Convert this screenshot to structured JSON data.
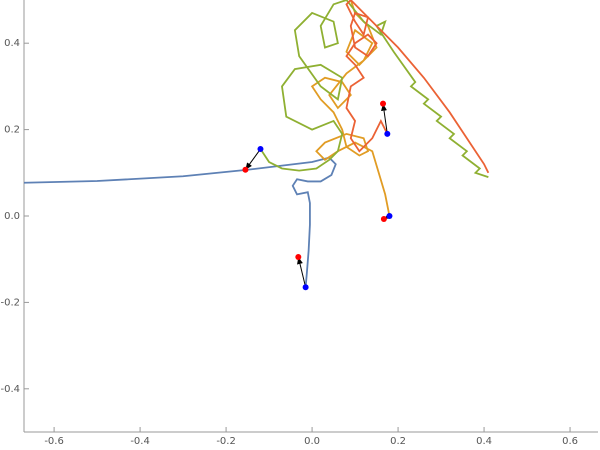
{
  "chart_data": {
    "type": "line",
    "xlim": [
      -0.67,
      0.665
    ],
    "ylim": [
      -0.5,
      0.5
    ],
    "xticks": [
      -0.6,
      -0.4,
      -0.2,
      {
        "value": 0,
        "label": "0.0"
      },
      0.2,
      0.4,
      0.6
    ],
    "yticks": [
      -0.4,
      -0.2,
      {
        "value": 0,
        "label": "0.0"
      },
      0.2,
      0.4
    ],
    "series": [
      {
        "color": "#5e81b5",
        "x": [
          -0.67,
          -0.5,
          -0.3,
          -0.15,
          0.0,
          0.04,
          0.055,
          0.045,
          0.02,
          -0.01,
          -0.035,
          -0.045,
          -0.035,
          -0.01,
          -0.005,
          -0.005,
          -0.008,
          -0.012,
          -0.015
        ],
        "values": [
          0.077,
          0.081,
          0.092,
          0.107,
          0.125,
          0.135,
          0.12,
          0.095,
          0.08,
          0.08,
          0.085,
          0.07,
          0.05,
          0.055,
          0.03,
          -0.02,
          -0.08,
          -0.13,
          -0.165
        ]
      },
      {
        "color": "#e19c24",
        "x": [
          0.18,
          0.17,
          0.155,
          0.14,
          0.1,
          0.06,
          0.03,
          0.01,
          0.03,
          0.08,
          0.12,
          0.13,
          0.11,
          0.08,
          0.07,
          0.05,
          0.02,
          0.0,
          0.03,
          0.07,
          0.09,
          0.06,
          0.04,
          0.08,
          0.12,
          0.14,
          0.1,
          0.08,
          0.11,
          0.15,
          0.13,
          0.1,
          0.09
        ],
        "values": [
          0.0,
          0.05,
          0.1,
          0.15,
          0.17,
          0.15,
          0.13,
          0.15,
          0.17,
          0.19,
          0.18,
          0.15,
          0.14,
          0.16,
          0.2,
          0.24,
          0.27,
          0.3,
          0.32,
          0.31,
          0.28,
          0.25,
          0.28,
          0.33,
          0.36,
          0.4,
          0.43,
          0.38,
          0.35,
          0.39,
          0.44,
          0.47,
          0.5
        ]
      },
      {
        "color": "#8fb032",
        "x": [
          -0.12,
          -0.1,
          -0.07,
          -0.03,
          0.01,
          0.04,
          0.06,
          0.07,
          0.05,
          0.0,
          -0.06,
          -0.07,
          -0.04,
          0.02,
          0.07,
          0.06,
          0.02,
          -0.03,
          -0.04,
          0.0,
          0.05,
          0.06,
          0.03,
          0.02,
          0.05,
          0.08,
          0.12,
          0.16,
          0.17,
          0.15,
          0.19,
          0.24,
          0.23,
          0.27,
          0.26,
          0.3,
          0.29,
          0.33,
          0.32,
          0.36,
          0.35,
          0.39,
          0.38,
          0.41
        ],
        "values": [
          0.155,
          0.125,
          0.11,
          0.105,
          0.11,
          0.13,
          0.15,
          0.19,
          0.22,
          0.2,
          0.23,
          0.3,
          0.34,
          0.35,
          0.32,
          0.27,
          0.3,
          0.37,
          0.43,
          0.47,
          0.45,
          0.4,
          0.39,
          0.44,
          0.49,
          0.5,
          0.45,
          0.42,
          0.45,
          0.44,
          0.38,
          0.31,
          0.3,
          0.27,
          0.26,
          0.23,
          0.22,
          0.19,
          0.18,
          0.15,
          0.14,
          0.11,
          0.1,
          0.09
        ]
      },
      {
        "color": "#eb6235",
        "x": [
          0.175,
          0.16,
          0.14,
          0.11,
          0.09,
          0.1,
          0.08,
          0.09,
          0.12,
          0.1,
          0.08,
          0.1,
          0.13,
          0.15,
          0.13,
          0.1,
          0.09,
          0.1,
          0.13,
          0.12,
          0.1,
          0.08,
          0.09,
          0.12,
          0.2,
          0.26,
          0.32,
          0.36,
          0.4,
          0.41
        ],
        "values": [
          0.19,
          0.22,
          0.18,
          0.15,
          0.18,
          0.22,
          0.25,
          0.3,
          0.32,
          0.35,
          0.37,
          0.4,
          0.42,
          0.4,
          0.37,
          0.39,
          0.44,
          0.47,
          0.46,
          0.42,
          0.45,
          0.49,
          0.5,
          0.47,
          0.39,
          0.32,
          0.24,
          0.18,
          0.12,
          0.1
        ]
      }
    ],
    "start_points": {
      "color": "#0000ff",
      "x": [
        -0.12,
        0.175,
        0.18,
        -0.015
      ],
      "values": [
        0.155,
        0.19,
        0.0,
        -0.165
      ]
    },
    "end_points": {
      "color": "#ff0000",
      "x": [
        -0.155,
        0.165,
        0.167,
        -0.032
      ],
      "values": [
        0.107,
        0.26,
        -0.007,
        -0.095
      ]
    }
  }
}
